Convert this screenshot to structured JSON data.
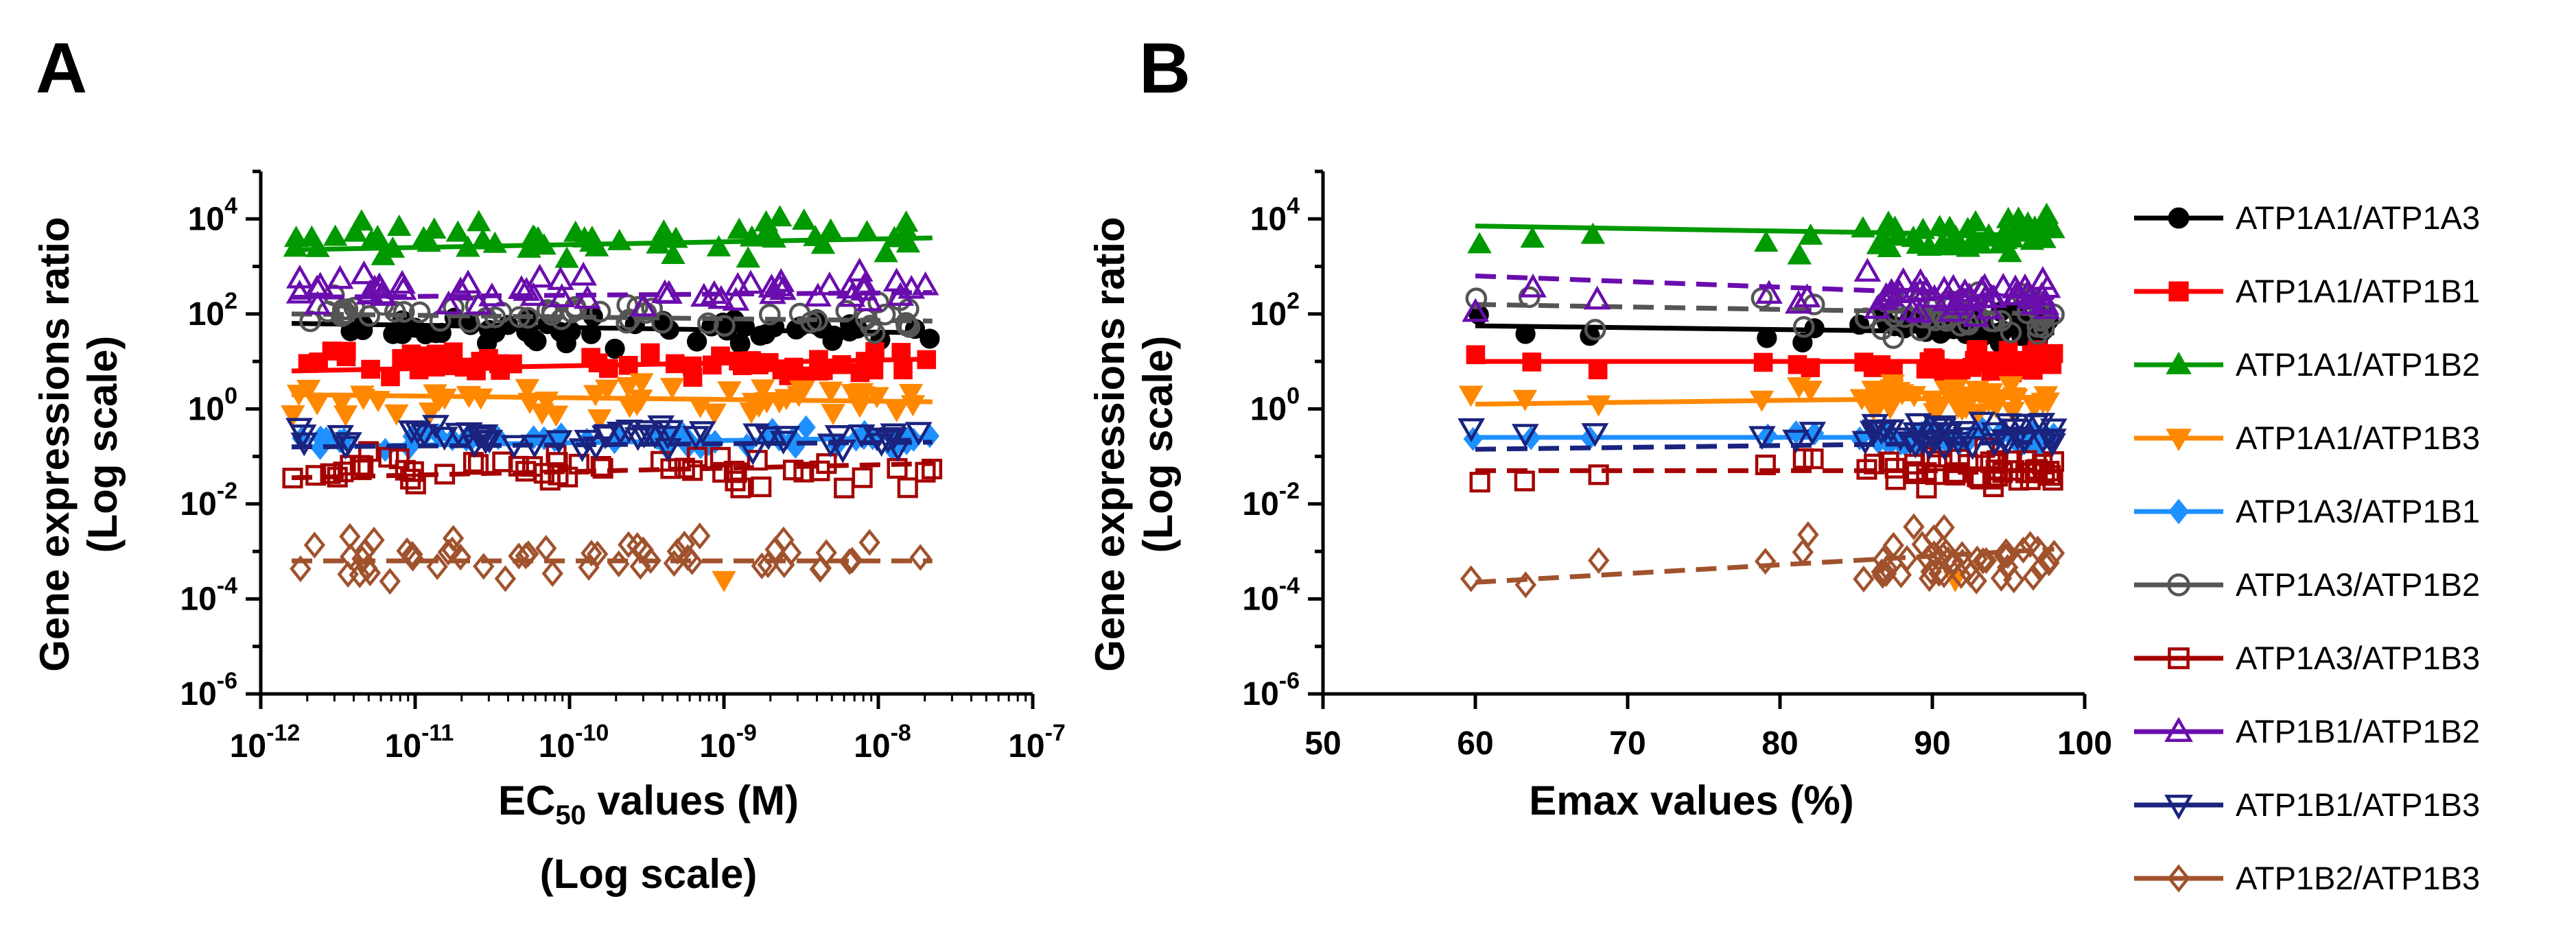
{
  "chart_data": [
    {
      "type": "scatter",
      "panel": "A",
      "ylabel_line1": "Gene expressions ratio",
      "ylabel_line2": "(Log scale)",
      "xlabel_main": "EC",
      "xlabel_sub": "50",
      "xlabel_rest": " values (M)",
      "xlabel_line2": "(Log scale)",
      "xscale": "log",
      "yscale": "log",
      "xlim_exp": [
        -12,
        -7
      ],
      "ylim_exp": [
        -6,
        5
      ],
      "xticks": [
        {
          "b": "10",
          "e": "-12"
        },
        {
          "b": "10",
          "e": "-11"
        },
        {
          "b": "10",
          "e": "-10"
        },
        {
          "b": "10",
          "e": "-9"
        },
        {
          "b": "10",
          "e": "-8"
        },
        {
          "b": "10",
          "e": "-7"
        }
      ],
      "yticks": [
        {
          "b": "10",
          "e": "-6"
        },
        {
          "b": "10",
          "e": "-4"
        },
        {
          "b": "10",
          "e": "-2"
        },
        {
          "b": "10",
          "e": "0"
        },
        {
          "b": "10",
          "e": "2"
        },
        {
          "b": "10",
          "e": "4"
        }
      ],
      "x_range_exp": [
        -11.8,
        -7.65
      ],
      "points_per_series": 55,
      "series": [
        {
          "name": "ATP1A1/ATP1A3",
          "marker": "circle",
          "fill": "filled",
          "color": "#000000",
          "dash": "solid",
          "center_exp": 1.65,
          "spread_exp": 0.25,
          "fit_exp": [
            1.8,
            1.6
          ]
        },
        {
          "name": "ATP1A1/ATP1B1",
          "marker": "square",
          "fill": "filled",
          "color": "#ff0000",
          "dash": "solid",
          "center_exp": 0.95,
          "spread_exp": 0.2,
          "fit_exp": [
            0.8,
            1.05
          ]
        },
        {
          "name": "ATP1A1/ATP1B2",
          "marker": "triangle-up",
          "fill": "filled",
          "color": "#009900",
          "dash": "solid",
          "center_exp": 3.55,
          "spread_exp": 0.3,
          "fit_exp": [
            3.35,
            3.6
          ]
        },
        {
          "name": "ATP1A1/ATP1B3",
          "marker": "triangle-down",
          "fill": "filled",
          "color": "#ff8800",
          "dash": "solid",
          "center_exp": 0.25,
          "spread_exp": 0.25,
          "fit_exp": [
            0.3,
            0.15
          ]
        },
        {
          "name": "ATP1A3/ATP1B1",
          "marker": "diamond",
          "fill": "filled",
          "color": "#1e90ff",
          "dash": "solid",
          "center_exp": -0.65,
          "spread_exp": 0.15,
          "fit_exp": [
            -0.8,
            -0.6
          ]
        },
        {
          "name": "ATP1A3/ATP1B2",
          "marker": "circle",
          "fill": "open",
          "color": "#555555",
          "dash": "dashed",
          "center_exp": 2.0,
          "spread_exp": 0.25,
          "fit_exp": [
            2.0,
            1.85
          ]
        },
        {
          "name": "ATP1A3/ATP1B3",
          "marker": "square",
          "fill": "open",
          "color": "#a50000",
          "dash": "dashed",
          "center_exp": -1.3,
          "spread_exp": 0.25,
          "fit_exp": [
            -1.45,
            -1.15
          ]
        },
        {
          "name": "ATP1B1/ATP1B2",
          "marker": "triangle-up",
          "fill": "open",
          "color": "#6a0dad",
          "dash": "dashed",
          "center_exp": 2.5,
          "spread_exp": 0.25,
          "fit_exp": [
            2.35,
            2.45
          ]
        },
        {
          "name": "ATP1B1/ATP1B3",
          "marker": "triangle-down",
          "fill": "open",
          "color": "#1a237e",
          "dash": "dashed",
          "center_exp": -0.6,
          "spread_exp": 0.18,
          "fit_exp": [
            -0.8,
            -0.7
          ]
        },
        {
          "name": "ATP1B2/ATP1B3",
          "marker": "diamond",
          "fill": "open",
          "color": "#a0522d",
          "dash": "dashed",
          "center_exp": -3.15,
          "spread_exp": 0.35,
          "fit_exp": [
            -3.2,
            -3.2
          ]
        }
      ]
    },
    {
      "type": "scatter",
      "panel": "B",
      "ylabel_line1": "Gene expressions ratio",
      "ylabel_line2": "(Log scale)",
      "xlabel": "Emax values (%)",
      "xscale": "linear",
      "yscale": "log",
      "xlim": [
        50,
        100
      ],
      "ylim_exp": [
        -6,
        5
      ],
      "xticks": [
        50,
        60,
        70,
        80,
        90,
        100
      ],
      "yticks": [
        {
          "b": "10",
          "e": "-6"
        },
        {
          "b": "10",
          "e": "-4"
        },
        {
          "b": "10",
          "e": "-2"
        },
        {
          "b": "10",
          "e": "0"
        },
        {
          "b": "10",
          "e": "2"
        },
        {
          "b": "10",
          "e": "4"
        }
      ],
      "x_sparse": [
        60,
        63.5,
        67.8,
        79,
        81.3,
        82,
        85.5
      ],
      "x_cluster_range": [
        86,
        98
      ],
      "points_cluster": 45,
      "fit_x": [
        60,
        98
      ],
      "series": [
        {
          "name": "ATP1A1/ATP1A3",
          "marker": "circle",
          "fill": "filled",
          "color": "#000000",
          "dash": "solid",
          "center_exp": 1.7,
          "spread_exp": 0.25,
          "fit_exp": [
            1.75,
            1.6
          ]
        },
        {
          "name": "ATP1A1/ATP1B1",
          "marker": "square",
          "fill": "filled",
          "color": "#ff0000",
          "dash": "solid",
          "center_exp": 0.95,
          "spread_exp": 0.2,
          "fit_exp": [
            1.0,
            1.0
          ]
        },
        {
          "name": "ATP1A1/ATP1B2",
          "marker": "triangle-up",
          "fill": "filled",
          "color": "#009900",
          "dash": "solid",
          "center_exp": 3.6,
          "spread_exp": 0.3,
          "fit_exp": [
            3.85,
            3.65
          ]
        },
        {
          "name": "ATP1A1/ATP1B3",
          "marker": "triangle-down",
          "fill": "filled",
          "color": "#ff8800",
          "dash": "solid",
          "center_exp": 0.2,
          "spread_exp": 0.25,
          "fit_exp": [
            0.1,
            0.25
          ]
        },
        {
          "name": "ATP1A3/ATP1B1",
          "marker": "diamond",
          "fill": "filled",
          "color": "#1e90ff",
          "dash": "solid",
          "center_exp": -0.6,
          "spread_exp": 0.15,
          "fit_exp": [
            -0.6,
            -0.6
          ]
        },
        {
          "name": "ATP1A3/ATP1B2",
          "marker": "circle",
          "fill": "open",
          "color": "#555555",
          "dash": "dashed",
          "center_exp": 2.0,
          "spread_exp": 0.35,
          "fit_exp": [
            2.2,
            2.0
          ]
        },
        {
          "name": "ATP1A3/ATP1B3",
          "marker": "square",
          "fill": "open",
          "color": "#a50000",
          "dash": "dashed",
          "center_exp": -1.3,
          "spread_exp": 0.3,
          "fit_exp": [
            -1.3,
            -1.3
          ]
        },
        {
          "name": "ATP1B1/ATP1B2",
          "marker": "triangle-up",
          "fill": "open",
          "color": "#6a0dad",
          "dash": "dashed",
          "center_exp": 2.4,
          "spread_exp": 0.3,
          "fit_exp": [
            2.8,
            2.35
          ]
        },
        {
          "name": "ATP1B1/ATP1B3",
          "marker": "triangle-down",
          "fill": "open",
          "color": "#1a237e",
          "dash": "dashed",
          "center_exp": -0.55,
          "spread_exp": 0.2,
          "fit_exp": [
            -0.85,
            -0.7
          ]
        },
        {
          "name": "ATP1B2/ATP1B3",
          "marker": "diamond",
          "fill": "open",
          "color": "#a0522d",
          "dash": "dashed",
          "center_exp": -3.2,
          "spread_exp": 0.4,
          "fit_exp": [
            -3.65,
            -2.95
          ]
        }
      ]
    }
  ],
  "legend": [
    {
      "label": "ATP1A1/ATP1A3",
      "marker": "circle",
      "fill": "filled",
      "color": "#000000"
    },
    {
      "label": "ATP1A1/ATP1B1",
      "marker": "square",
      "fill": "filled",
      "color": "#ff0000"
    },
    {
      "label": "ATP1A1/ATP1B2",
      "marker": "triangle-up",
      "fill": "filled",
      "color": "#009900"
    },
    {
      "label": "ATP1A1/ATP1B3",
      "marker": "triangle-down",
      "fill": "filled",
      "color": "#ff8800"
    },
    {
      "label": "ATP1A3/ATP1B1",
      "marker": "diamond",
      "fill": "filled",
      "color": "#1e90ff"
    },
    {
      "label": "ATP1A3/ATP1B2",
      "marker": "circle",
      "fill": "open",
      "color": "#555555"
    },
    {
      "label": "ATP1A3/ATP1B3",
      "marker": "square",
      "fill": "open",
      "color": "#a50000"
    },
    {
      "label": "ATP1B1/ATP1B2",
      "marker": "triangle-up",
      "fill": "open",
      "color": "#6a0dad"
    },
    {
      "label": "ATP1B1/ATP1B3",
      "marker": "triangle-down",
      "fill": "open",
      "color": "#1a237e"
    },
    {
      "label": "ATP1B2/ATP1B3",
      "marker": "diamond",
      "fill": "open",
      "color": "#a0522d"
    }
  ]
}
